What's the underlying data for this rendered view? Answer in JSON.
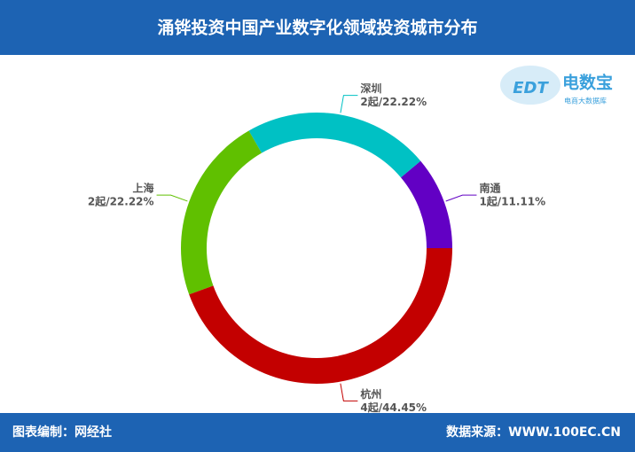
{
  "chart_data": {
    "type": "donut",
    "title": "涌铧投资中国产业数字化领域投资城市分布",
    "categories": [
      "南通",
      "深圳",
      "上海",
      "杭州"
    ],
    "values": [
      11.11,
      22.22,
      22.22,
      44.45
    ],
    "value_labels": [
      "1起/11.11%",
      "2起/22.22%",
      "2起/22.22%",
      "4起/44.45%"
    ],
    "colors": [
      "#6200c4",
      "#00c1c4",
      "#60c000",
      "#c30000"
    ]
  },
  "logo": {
    "mark": "EDT",
    "name": "电数宝",
    "subtitle": "电商大数据库"
  },
  "footer": {
    "left": "图表编制：网经社",
    "right": "数据来源：WWW.100EC.CN"
  }
}
